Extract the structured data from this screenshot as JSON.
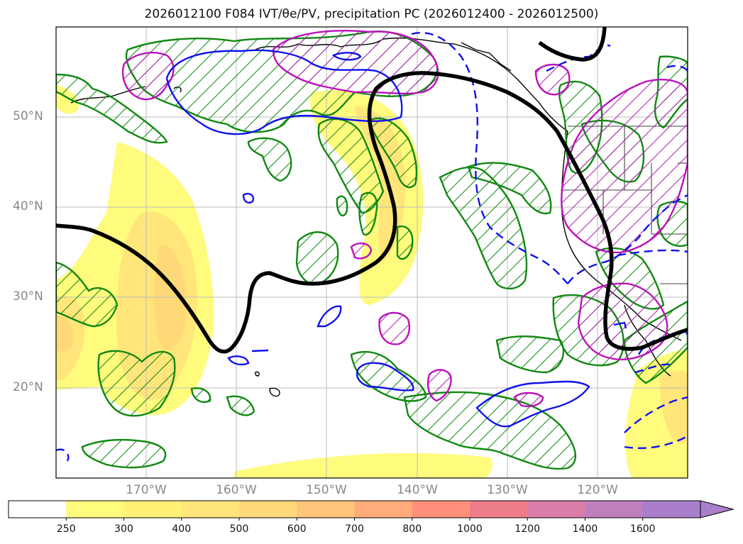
{
  "title": "2026012100 F084 IVT/θe/PV, precipitation PC (2026012400 - 2026012500)",
  "lat_labels": [
    "50°N",
    "40°N",
    "30°N",
    "20°N"
  ],
  "lon_labels": [
    "170°W",
    "160°W",
    "150°W",
    "140°W",
    "130°W",
    "120°W"
  ],
  "colorbar": {
    "ticks": [
      "250",
      "300",
      "400",
      "500",
      "600",
      "700",
      "800",
      "1000",
      "1200",
      "1400",
      "1600"
    ],
    "colors": [
      "#ffffff",
      "#fffb7d",
      "#fff176",
      "#ffe57a",
      "#ffd878",
      "#ffc57a",
      "#ffab7a",
      "#ff8f7a",
      "#ee7d8a",
      "#d97ea8",
      "#bf7fbf",
      "#a97fcc"
    ]
  },
  "legend": {
    "ivt_fill": "#fff176",
    "pv_green": "#118811",
    "theta_magenta": "#bb11bb",
    "blue_contour": "#1111ee",
    "black_contour": "#000000"
  }
}
